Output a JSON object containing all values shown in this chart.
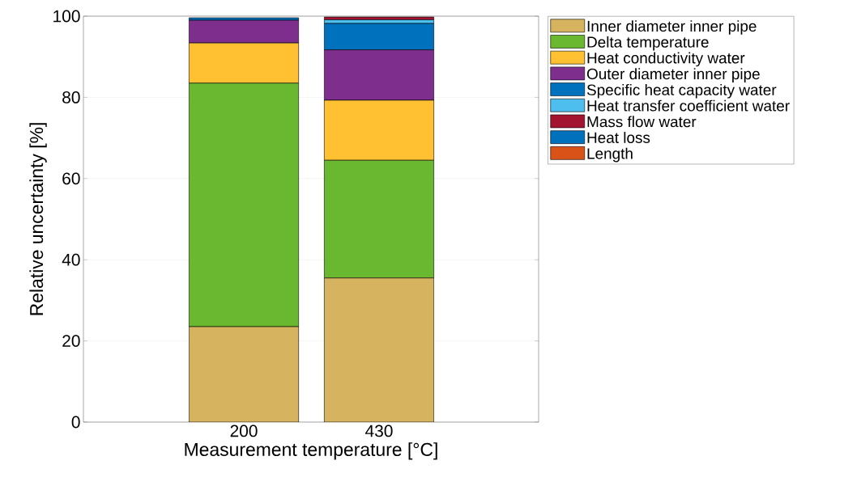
{
  "chart_data": {
    "type": "bar",
    "stacked": true,
    "xlabel": "Measurement temperature [°C]",
    "ylabel": "Relative uncertainty [%]",
    "categories": [
      "200",
      "430"
    ],
    "series": [
      {
        "name": "Inner diameter inner pipe",
        "color": "#d6b35e",
        "values": [
          23.5,
          35.5
        ]
      },
      {
        "name": "Delta temperature",
        "color": "#6ab82f",
        "values": [
          60.0,
          29.0
        ]
      },
      {
        "name": "Heat conductivity water",
        "color": "#ffc131",
        "values": [
          9.9,
          14.8
        ]
      },
      {
        "name": "Outer diameter inner pipe",
        "color": "#7e2f8e",
        "values": [
          5.6,
          12.4
        ]
      },
      {
        "name": "Specific heat capacity water",
        "color": "#0072bd",
        "values": [
          0.6,
          6.5
        ]
      },
      {
        "name": "Heat transfer coefficient water",
        "color": "#4dbeee",
        "values": [
          null,
          0.9
        ]
      },
      {
        "name": "Mass flow water",
        "color": "#a2142f",
        "values": [
          0,
          0.7
        ]
      },
      {
        "name": "Heat loss",
        "color": "#0072bd",
        "values": [
          0,
          null
        ]
      },
      {
        "name": "Length",
        "color": "#d95319",
        "values": [
          0,
          null
        ]
      }
    ],
    "ylim": [
      0,
      100
    ],
    "yticks": [
      0,
      20,
      40,
      60,
      80,
      100
    ],
    "grid": "y",
    "legend": "top right"
  }
}
